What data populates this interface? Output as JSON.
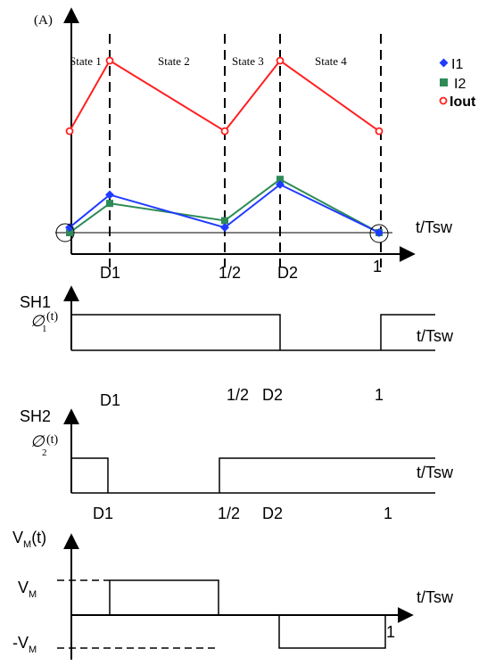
{
  "colors": {
    "i1": "#1f3bff",
    "i2": "#2e8b57",
    "iout": "#ff2020",
    "axis": "#000000"
  },
  "top_panel": {
    "y_unit": "(A)",
    "x_label": "t/Tsw",
    "states": [
      "State 1",
      "State 2",
      "State 3",
      "State 4"
    ],
    "ticks": [
      "D1",
      "1/2",
      "D2",
      "1"
    ],
    "legend": [
      "I1",
      "I2",
      "Iout"
    ]
  },
  "chart_data": {
    "type": "line",
    "x": [
      "0",
      "D1",
      "1/2",
      "D2",
      "1"
    ],
    "series": [
      {
        "name": "I1",
        "values": [
          0.03,
          0.22,
          0.03,
          0.28,
          0.0
        ]
      },
      {
        "name": "I2",
        "values": [
          0.0,
          0.17,
          0.07,
          0.31,
          0.0
        ]
      },
      {
        "name": "Iout",
        "values": [
          0.59,
          1.0,
          0.59,
          1.0,
          0.59
        ]
      }
    ]
  },
  "sh1": {
    "label": "SH1",
    "func": "∅",
    "sub": "1",
    "arg": "(t)",
    "x_label": "t/Tsw",
    "ticks": [
      "D1",
      "1/2",
      "D2",
      "1"
    ]
  },
  "sh2": {
    "label": "SH2",
    "func": "∅",
    "sub": "2",
    "arg": "(t)",
    "x_label": "t/Tsw",
    "ticks": [
      "D1",
      "1/2",
      "D2",
      "1"
    ]
  },
  "vm": {
    "label_main": "V",
    "label_sub": "M",
    "label_arg": "(t)",
    "pos_main": "V",
    "pos_sub": "M",
    "neg_main": "-V",
    "neg_sub": "M",
    "x_label": "t/Tsw",
    "tick_end": "1"
  }
}
